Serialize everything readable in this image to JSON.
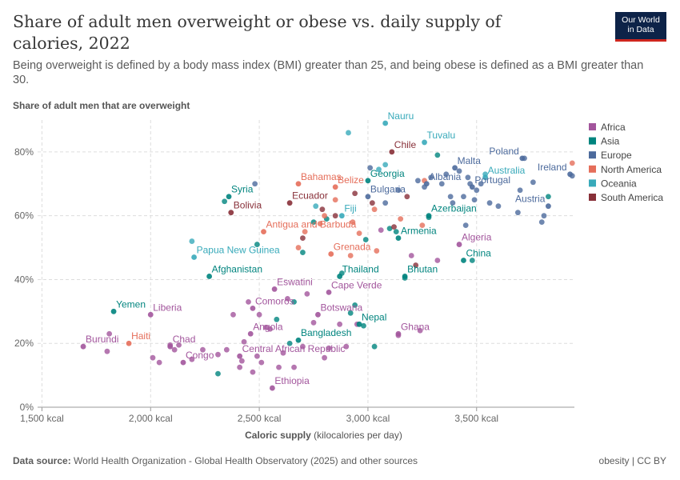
{
  "title": "Share of adult men overweight or obese vs. daily supply of calories, 2022",
  "subtitle": "Being overweight is defined by a body mass index (BMI) greater than 25, and being obese is defined as a BMI greater than 30.",
  "logo": {
    "line1": "Our World",
    "line2": "in Data"
  },
  "footer": {
    "source_label": "Data source:",
    "source_text": "World Health Organization - Global Health Observatory (2025) and other sources",
    "right": "obesity | CC BY"
  },
  "colors": {
    "Africa": "#a2559c",
    "Asia": "#00847e",
    "Europe": "#4c6a9c",
    "North America": "#e56e5a",
    "Oceania": "#38aaba",
    "South America": "#883039"
  },
  "chart_data": {
    "type": "scatter",
    "title": "Share of adult men overweight or obese vs. daily supply of calories, 2022",
    "xlabel": "Caloric supply",
    "xlabel_unit": "(kilocalories per day)",
    "ylabel": "Share of adult men that are overweight",
    "xlim": [
      1480,
      3950
    ],
    "ylim": [
      0,
      90
    ],
    "xticks": [
      1500,
      2000,
      2500,
      3000,
      3500
    ],
    "xtick_labels": [
      "1,500 kcal",
      "2,000 kcal",
      "2,500 kcal",
      "3,000 kcal",
      "3,500 kcal"
    ],
    "yticks": [
      0,
      20,
      40,
      60,
      80
    ],
    "ytick_labels": [
      "0%",
      "20%",
      "40%",
      "60%",
      "80%"
    ],
    "grid": true,
    "legend_position": "right",
    "legend": [
      "Africa",
      "Asia",
      "Europe",
      "North America",
      "Oceania",
      "South America"
    ],
    "labeled_points": [
      {
        "name": "Burundi",
        "region": "Africa",
        "x": 1690,
        "y": 19
      },
      {
        "name": "Haiti",
        "region": "North America",
        "x": 1900,
        "y": 20
      },
      {
        "name": "Yemen",
        "region": "Asia",
        "x": 1830,
        "y": 30
      },
      {
        "name": "Liberia",
        "region": "Africa",
        "x": 2000,
        "y": 29
      },
      {
        "name": "Chad",
        "region": "Africa",
        "x": 2090,
        "y": 19
      },
      {
        "name": "Congo",
        "region": "Africa",
        "x": 2150,
        "y": 14
      },
      {
        "name": "Afghanistan",
        "region": "Asia",
        "x": 2270,
        "y": 41
      },
      {
        "name": "Papua New Guinea",
        "region": "Oceania",
        "x": 2200,
        "y": 47
      },
      {
        "name": "Syria",
        "region": "Asia",
        "x": 2360,
        "y": 66
      },
      {
        "name": "Bolivia",
        "region": "South America",
        "x": 2370,
        "y": 61
      },
      {
        "name": "Ecuador",
        "region": "South America",
        "x": 2640,
        "y": 64
      },
      {
        "name": "Bahamas",
        "region": "North America",
        "x": 2680,
        "y": 70
      },
      {
        "name": "Antigua and Barbuda",
        "region": "North America",
        "x": 2520,
        "y": 55
      },
      {
        "name": "Comoros",
        "region": "Africa",
        "x": 2470,
        "y": 31
      },
      {
        "name": "Angola",
        "region": "Africa",
        "x": 2460,
        "y": 23
      },
      {
        "name": "Central African Republic",
        "region": "Africa",
        "x": 2410,
        "y": 16
      },
      {
        "name": "Ethiopia",
        "region": "Africa",
        "x": 2560,
        "y": 6
      },
      {
        "name": "Eswatini",
        "region": "Africa",
        "x": 2570,
        "y": 37
      },
      {
        "name": "Bangladesh",
        "region": "Asia",
        "x": 2680,
        "y": 21
      },
      {
        "name": "Botswana",
        "region": "Africa",
        "x": 2770,
        "y": 29
      },
      {
        "name": "Cape Verde",
        "region": "Africa",
        "x": 2820,
        "y": 36
      },
      {
        "name": "Grenada",
        "region": "North America",
        "x": 2830,
        "y": 48
      },
      {
        "name": "Belize",
        "region": "North America",
        "x": 2850,
        "y": 69
      },
      {
        "name": "Fiji",
        "region": "Oceania",
        "x": 2880,
        "y": 60
      },
      {
        "name": "Thailand",
        "region": "Asia",
        "x": 2870,
        "y": 41
      },
      {
        "name": "Nepal",
        "region": "Asia",
        "x": 2960,
        "y": 26
      },
      {
        "name": "Georgia",
        "region": "Asia",
        "x": 3000,
        "y": 71
      },
      {
        "name": "Bulgaria",
        "region": "Europe",
        "x": 3000,
        "y": 66
      },
      {
        "name": "Nauru",
        "region": "Oceania",
        "x": 3080,
        "y": 89
      },
      {
        "name": "Chile",
        "region": "South America",
        "x": 3110,
        "y": 80
      },
      {
        "name": "Tuvalu",
        "region": "Oceania",
        "x": 3260,
        "y": 83
      },
      {
        "name": "Albania",
        "region": "Europe",
        "x": 3270,
        "y": 70
      },
      {
        "name": "Armenia",
        "region": "Asia",
        "x": 3140,
        "y": 53
      },
      {
        "name": "Azerbaijan",
        "region": "Asia",
        "x": 3280,
        "y": 60
      },
      {
        "name": "Bhutan",
        "region": "Asia",
        "x": 3170,
        "y": 41
      },
      {
        "name": "Ghana",
        "region": "Africa",
        "x": 3140,
        "y": 23
      },
      {
        "name": "Algeria",
        "region": "Africa",
        "x": 3420,
        "y": 51
      },
      {
        "name": "China",
        "region": "Asia",
        "x": 3440,
        "y": 46
      },
      {
        "name": "Malta",
        "region": "Europe",
        "x": 3400,
        "y": 75
      },
      {
        "name": "Portugal",
        "region": "Europe",
        "x": 3480,
        "y": 69
      },
      {
        "name": "Australia",
        "region": "Oceania",
        "x": 3540,
        "y": 72
      },
      {
        "name": "Poland",
        "region": "Europe",
        "x": 3710,
        "y": 78
      },
      {
        "name": "Ireland",
        "region": "Europe",
        "x": 3930,
        "y": 73
      },
      {
        "name": "Austria",
        "region": "Europe",
        "x": 3830,
        "y": 63
      }
    ],
    "unlabeled_points": [
      {
        "region": "Africa",
        "x": 1810,
        "y": 23
      },
      {
        "region": "Africa",
        "x": 1800,
        "y": 17.5
      },
      {
        "region": "Africa",
        "x": 2010,
        "y": 15.5
      },
      {
        "region": "Africa",
        "x": 2040,
        "y": 14
      },
      {
        "region": "Africa",
        "x": 2090,
        "y": 19.5
      },
      {
        "region": "Africa",
        "x": 2110,
        "y": 18
      },
      {
        "region": "Africa",
        "x": 2130,
        "y": 19.5
      },
      {
        "region": "Africa",
        "x": 2190,
        "y": 15
      },
      {
        "region": "Africa",
        "x": 2240,
        "y": 18
      },
      {
        "region": "Africa",
        "x": 2310,
        "y": 16.5
      },
      {
        "region": "Africa",
        "x": 2350,
        "y": 18
      },
      {
        "region": "Africa",
        "x": 2380,
        "y": 29
      },
      {
        "region": "Africa",
        "x": 2410,
        "y": 12.5
      },
      {
        "region": "Africa",
        "x": 2420,
        "y": 14.5
      },
      {
        "region": "Africa",
        "x": 2430,
        "y": 20.5
      },
      {
        "region": "Africa",
        "x": 2450,
        "y": 33
      },
      {
        "region": "Africa",
        "x": 2470,
        "y": 11
      },
      {
        "region": "Africa",
        "x": 2490,
        "y": 16
      },
      {
        "region": "Africa",
        "x": 2500,
        "y": 29
      },
      {
        "region": "Africa",
        "x": 2510,
        "y": 14
      },
      {
        "region": "Africa",
        "x": 2530,
        "y": 25
      },
      {
        "region": "Africa",
        "x": 2550,
        "y": 24.5
      },
      {
        "region": "Africa",
        "x": 2590,
        "y": 12.5
      },
      {
        "region": "Africa",
        "x": 2610,
        "y": 17
      },
      {
        "region": "Africa",
        "x": 2630,
        "y": 34
      },
      {
        "region": "Africa",
        "x": 2660,
        "y": 12.5
      },
      {
        "region": "Africa",
        "x": 2700,
        "y": 19
      },
      {
        "region": "Africa",
        "x": 2720,
        "y": 35.5
      },
      {
        "region": "Africa",
        "x": 2750,
        "y": 26.5
      },
      {
        "region": "Africa",
        "x": 2800,
        "y": 15.5
      },
      {
        "region": "Africa",
        "x": 2820,
        "y": 18.5
      },
      {
        "region": "Africa",
        "x": 2870,
        "y": 26
      },
      {
        "region": "Africa",
        "x": 2900,
        "y": 19
      },
      {
        "region": "Africa",
        "x": 2950,
        "y": 26
      },
      {
        "region": "Africa",
        "x": 3060,
        "y": 55.5
      },
      {
        "region": "Africa",
        "x": 3140,
        "y": 22.5
      },
      {
        "region": "Africa",
        "x": 3200,
        "y": 47.5
      },
      {
        "region": "Africa",
        "x": 3240,
        "y": 24
      },
      {
        "region": "Africa",
        "x": 3320,
        "y": 46
      },
      {
        "region": "Asia",
        "x": 2310,
        "y": 10.5
      },
      {
        "region": "Asia",
        "x": 2340,
        "y": 64.5
      },
      {
        "region": "Asia",
        "x": 2490,
        "y": 51
      },
      {
        "region": "Asia",
        "x": 2580,
        "y": 27.5
      },
      {
        "region": "Asia",
        "x": 2640,
        "y": 20
      },
      {
        "region": "Asia",
        "x": 2660,
        "y": 33
      },
      {
        "region": "Asia",
        "x": 2700,
        "y": 48.5
      },
      {
        "region": "Asia",
        "x": 2750,
        "y": 58
      },
      {
        "region": "Asia",
        "x": 2810,
        "y": 59
      },
      {
        "region": "Asia",
        "x": 2880,
        "y": 42
      },
      {
        "region": "Asia",
        "x": 2920,
        "y": 29.5
      },
      {
        "region": "Asia",
        "x": 2940,
        "y": 32
      },
      {
        "region": "Asia",
        "x": 2980,
        "y": 25.5
      },
      {
        "region": "Asia",
        "x": 2990,
        "y": 52.5
      },
      {
        "region": "Asia",
        "x": 3030,
        "y": 19
      },
      {
        "region": "Asia",
        "x": 3100,
        "y": 56
      },
      {
        "region": "Asia",
        "x": 3130,
        "y": 55
      },
      {
        "region": "Asia",
        "x": 3170,
        "y": 40.5
      },
      {
        "region": "Asia",
        "x": 3280,
        "y": 59.5
      },
      {
        "region": "Asia",
        "x": 3320,
        "y": 79
      },
      {
        "region": "Asia",
        "x": 3480,
        "y": 46
      },
      {
        "region": "Asia",
        "x": 3830,
        "y": 66
      },
      {
        "region": "Europe",
        "x": 2480,
        "y": 70
      },
      {
        "region": "Europe",
        "x": 3010,
        "y": 75
      },
      {
        "region": "Europe",
        "x": 3080,
        "y": 64
      },
      {
        "region": "Europe",
        "x": 3140,
        "y": 68
      },
      {
        "region": "Europe",
        "x": 3230,
        "y": 71
      },
      {
        "region": "Europe",
        "x": 3260,
        "y": 69
      },
      {
        "region": "Europe",
        "x": 3290,
        "y": 72
      },
      {
        "region": "Europe",
        "x": 3340,
        "y": 70
      },
      {
        "region": "Europe",
        "x": 3360,
        "y": 73
      },
      {
        "region": "Europe",
        "x": 3380,
        "y": 66
      },
      {
        "region": "Europe",
        "x": 3390,
        "y": 64
      },
      {
        "region": "Europe",
        "x": 3420,
        "y": 74
      },
      {
        "region": "Europe",
        "x": 3440,
        "y": 66
      },
      {
        "region": "Europe",
        "x": 3450,
        "y": 57
      },
      {
        "region": "Europe",
        "x": 3460,
        "y": 72
      },
      {
        "region": "Europe",
        "x": 3470,
        "y": 70
      },
      {
        "region": "Europe",
        "x": 3490,
        "y": 65
      },
      {
        "region": "Europe",
        "x": 3500,
        "y": 68
      },
      {
        "region": "Europe",
        "x": 3520,
        "y": 70
      },
      {
        "region": "Europe",
        "x": 3560,
        "y": 64
      },
      {
        "region": "Europe",
        "x": 3600,
        "y": 63
      },
      {
        "region": "Europe",
        "x": 3690,
        "y": 61
      },
      {
        "region": "Europe",
        "x": 3700,
        "y": 68
      },
      {
        "region": "Europe",
        "x": 3720,
        "y": 78
      },
      {
        "region": "Europe",
        "x": 3760,
        "y": 70.5
      },
      {
        "region": "Europe",
        "x": 3800,
        "y": 58
      },
      {
        "region": "Europe",
        "x": 3810,
        "y": 60
      },
      {
        "region": "Europe",
        "x": 3940,
        "y": 72.5
      },
      {
        "region": "North America",
        "x": 2680,
        "y": 50
      },
      {
        "region": "North America",
        "x": 2710,
        "y": 55
      },
      {
        "region": "North America",
        "x": 2780,
        "y": 57.5
      },
      {
        "region": "North America",
        "x": 2800,
        "y": 60
      },
      {
        "region": "North America",
        "x": 2850,
        "y": 65
      },
      {
        "region": "North America",
        "x": 2920,
        "y": 47.5
      },
      {
        "region": "North America",
        "x": 2930,
        "y": 58
      },
      {
        "region": "North America",
        "x": 2960,
        "y": 54.5
      },
      {
        "region": "North America",
        "x": 3030,
        "y": 62
      },
      {
        "region": "North America",
        "x": 3040,
        "y": 49
      },
      {
        "region": "North America",
        "x": 3150,
        "y": 59
      },
      {
        "region": "North America",
        "x": 3250,
        "y": 57
      },
      {
        "region": "North America",
        "x": 3260,
        "y": 71
      },
      {
        "region": "North America",
        "x": 3940,
        "y": 76.5
      },
      {
        "region": "Oceania",
        "x": 2190,
        "y": 52
      },
      {
        "region": "Oceania",
        "x": 2760,
        "y": 63
      },
      {
        "region": "Oceania",
        "x": 2910,
        "y": 86
      },
      {
        "region": "Oceania",
        "x": 3050,
        "y": 74.5
      },
      {
        "region": "Oceania",
        "x": 3080,
        "y": 76
      },
      {
        "region": "Oceania",
        "x": 3540,
        "y": 73
      },
      {
        "region": "South America",
        "x": 2700,
        "y": 53
      },
      {
        "region": "South America",
        "x": 2790,
        "y": 62
      },
      {
        "region": "South America",
        "x": 2850,
        "y": 60
      },
      {
        "region": "South America",
        "x": 2940,
        "y": 67
      },
      {
        "region": "South America",
        "x": 3020,
        "y": 64
      },
      {
        "region": "South America",
        "x": 3120,
        "y": 56.5
      },
      {
        "region": "South America",
        "x": 3180,
        "y": 66
      },
      {
        "region": "South America",
        "x": 3220,
        "y": 44.5
      }
    ]
  }
}
